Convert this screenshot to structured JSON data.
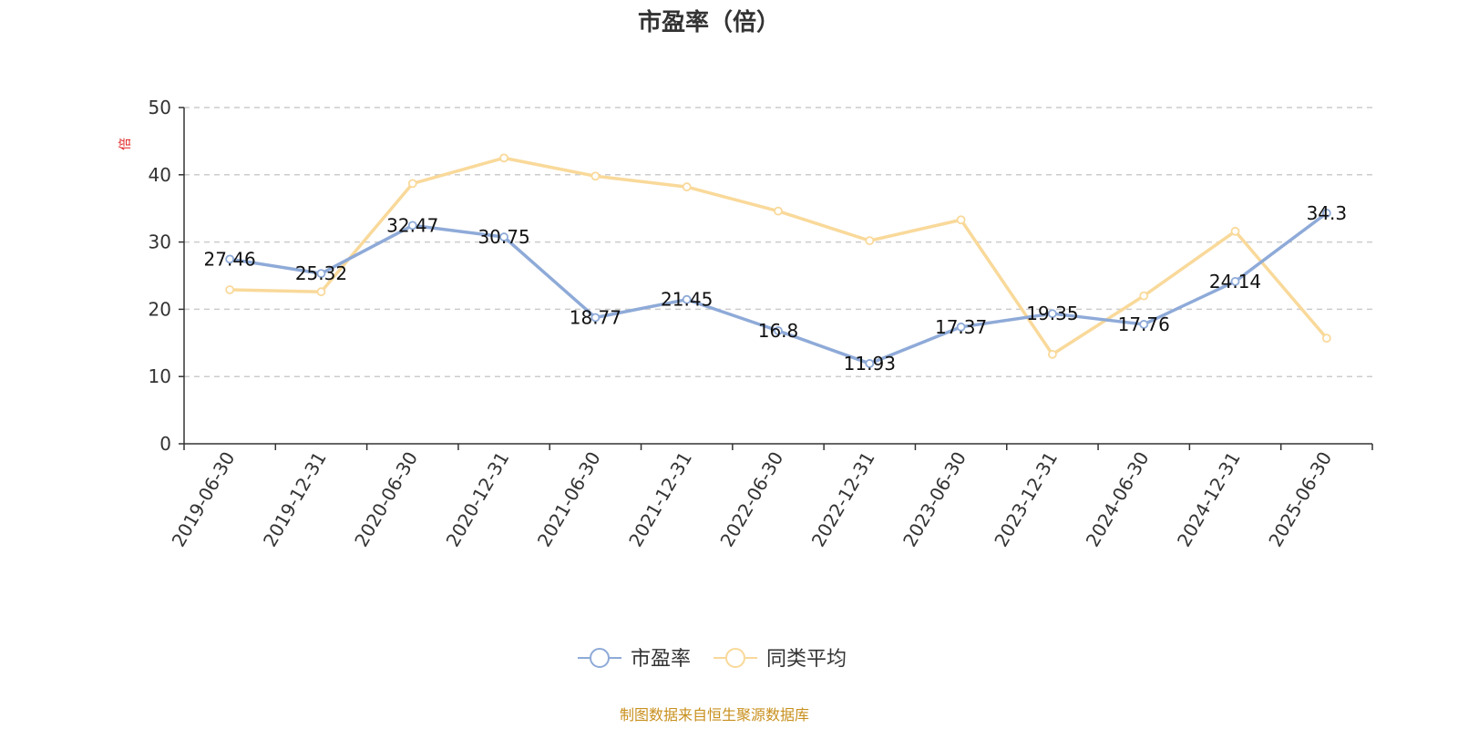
{
  "chart_data": {
    "type": "line",
    "title": "市盈率（倍）",
    "ylabel": "倍",
    "ylabel_color": "#e02020",
    "ylim": [
      0,
      50
    ],
    "yticks": [
      0,
      10,
      20,
      30,
      40,
      50
    ],
    "grid": true,
    "legend_position": "bottom-center",
    "categories": [
      "2019-06-30",
      "2019-12-31",
      "2020-06-30",
      "2020-12-31",
      "2021-06-30",
      "2021-12-31",
      "2022-06-30",
      "2022-12-31",
      "2023-06-30",
      "2023-12-31",
      "2024-06-30",
      "2024-12-31",
      "2025-06-30"
    ],
    "series": [
      {
        "name": "市盈率",
        "color": "#8eaad8",
        "values": [
          27.46,
          25.32,
          32.47,
          30.75,
          18.77,
          21.45,
          16.8,
          11.93,
          17.37,
          19.35,
          17.76,
          24.14,
          34.3
        ],
        "labels": [
          "27.46",
          "25.32",
          "32.47",
          "30.75",
          "18.77",
          "21.45",
          "16.8",
          "11.93",
          "17.37",
          "19.35",
          "17.76",
          "24.14",
          "34.3"
        ]
      },
      {
        "name": "同类平均",
        "color": "#f9d99a",
        "values": [
          22.9,
          22.6,
          38.7,
          42.5,
          39.8,
          38.2,
          34.6,
          30.2,
          33.3,
          13.3,
          22.0,
          31.6,
          15.7
        ]
      }
    ]
  },
  "footer": {
    "text": "制图数据来自恒生聚源数据库",
    "color": "#c8901e"
  }
}
